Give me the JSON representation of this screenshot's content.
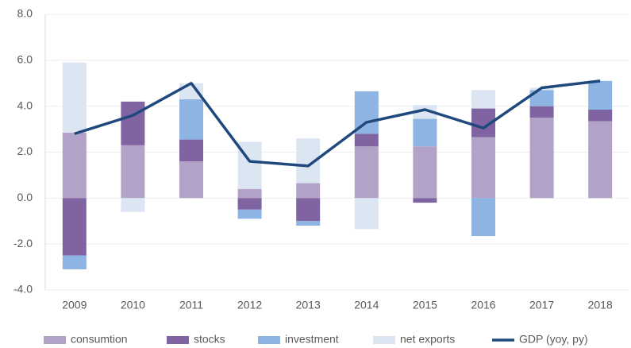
{
  "chart_data": {
    "type": "bar",
    "stacked": true,
    "categories": [
      "2009",
      "2010",
      "2011",
      "2012",
      "2013",
      "2014",
      "2015",
      "2016",
      "2017",
      "2018"
    ],
    "series": [
      {
        "name": "consumtion",
        "color": "#b3a2c7",
        "values": [
          2.85,
          2.3,
          1.6,
          0.4,
          0.65,
          2.25,
          2.25,
          2.65,
          3.5,
          3.35
        ]
      },
      {
        "name": "stocks",
        "color": "#8064a2",
        "values": [
          -2.5,
          1.9,
          0.95,
          -0.5,
          -1.0,
          0.55,
          -0.2,
          1.25,
          0.5,
          0.5
        ]
      },
      {
        "name": "investment",
        "color": "#8eb4e3",
        "values": [
          -0.6,
          0,
          1.75,
          -0.4,
          -0.2,
          1.85,
          1.2,
          -1.65,
          0.7,
          1.25
        ]
      },
      {
        "name": "net exports",
        "color": "#dce6f2",
        "values": [
          3.05,
          -0.6,
          0.7,
          2.05,
          1.95,
          -1.35,
          0.6,
          0.8,
          0.1,
          0
        ]
      },
      {
        "name": "GDP (yoy, py)",
        "color": "#1f497d",
        "type": "line",
        "values": [
          2.8,
          3.6,
          5.0,
          1.6,
          1.4,
          3.3,
          3.85,
          3.05,
          4.8,
          5.1
        ]
      }
    ],
    "ylim": [
      -4,
      8
    ],
    "yticks": [
      {
        "value": -4,
        "label": "-4.0"
      },
      {
        "value": -2,
        "label": "-2.0"
      },
      {
        "value": 0,
        "label": "0.0"
      },
      {
        "value": 2,
        "label": "2.0"
      },
      {
        "value": 4,
        "label": "4.0"
      },
      {
        "value": 6,
        "label": "6.0"
      },
      {
        "value": 8,
        "label": "8.0"
      }
    ],
    "grid": true,
    "legend": "bottom"
  }
}
